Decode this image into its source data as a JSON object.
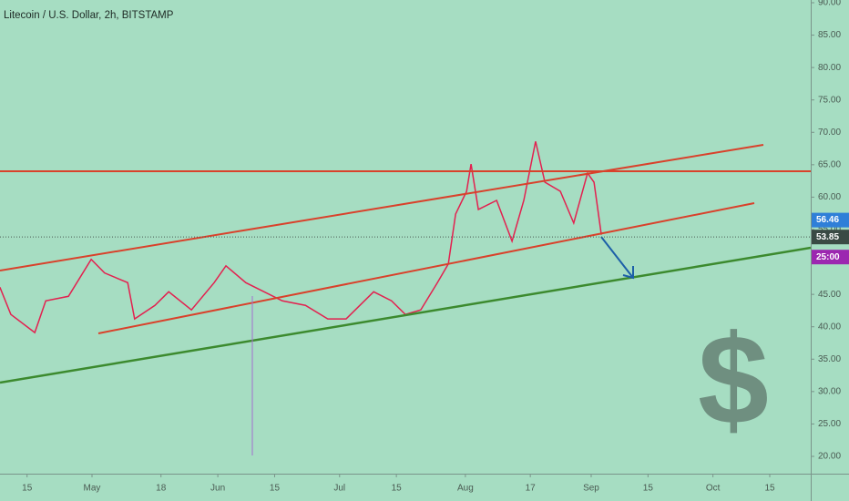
{
  "chart_data": {
    "type": "line",
    "title": "Litecoin / U.S. Dollar, 2h, BITSTAMP",
    "watermark": "$",
    "series": [
      {
        "name": "LTCUSD",
        "color": "#e3204f",
        "x": [
          99.3,
          102.0,
          107.9,
          110.6,
          116.2,
          121.8,
          125.1,
          130.8,
          132.5,
          137.5,
          140.9,
          146.5,
          152.1,
          155.0,
          159.9,
          164.4,
          168.9,
          174.6,
          180.1,
          184.6,
          191.4,
          195.8,
          199.2,
          203.0,
          207.1,
          209.8,
          211.6,
          214.3,
          215.4,
          217.2,
          221.7,
          225.5,
          228.4,
          231.3,
          233.6,
          237.4,
          240.7,
          244.1,
          245.7,
          247.5
        ],
        "values": [
          46.1,
          41.9,
          39.1,
          44.0,
          44.7,
          50.4,
          48.3,
          46.8,
          41.2,
          43.3,
          45.4,
          42.6,
          46.8,
          49.4,
          46.8,
          45.4,
          44.0,
          43.3,
          41.2,
          41.2,
          45.4,
          44.0,
          41.9,
          42.6,
          46.8,
          49.7,
          57.4,
          60.9,
          65.1,
          58.1,
          59.5,
          53.2,
          59.5,
          68.6,
          62.3,
          60.9,
          56.0,
          63.7,
          62.3,
          54.2
        ]
      }
    ],
    "xlim": [
      99.33,
      299.1
    ],
    "xticks": [
      {
        "value": 106,
        "label": "15"
      },
      {
        "value": 122,
        "label": "May"
      },
      {
        "value": 139,
        "label": "18"
      },
      {
        "value": 153,
        "label": "Jun"
      },
      {
        "value": 167,
        "label": "15"
      },
      {
        "value": 183,
        "label": "Jul"
      },
      {
        "value": 197,
        "label": "15"
      },
      {
        "value": 214,
        "label": "Aug"
      },
      {
        "value": 230,
        "label": "17"
      },
      {
        "value": 245,
        "label": "Sep"
      },
      {
        "value": 259,
        "label": "15"
      },
      {
        "value": 275,
        "label": "Oct"
      },
      {
        "value": 289,
        "label": "15"
      }
    ],
    "ylim": [
      17.33,
      90.42
    ],
    "yticks": [
      {
        "value": 20,
        "label": "20.00"
      },
      {
        "value": 25,
        "label": "25.00"
      },
      {
        "value": 30,
        "label": "30.00"
      },
      {
        "value": 35,
        "label": "35.00"
      },
      {
        "value": 40,
        "label": "40.00"
      },
      {
        "value": 45,
        "label": "45.00"
      },
      {
        "value": 50,
        "label": "50.00"
      },
      {
        "value": 55,
        "label": "55.00"
      },
      {
        "value": 60,
        "label": "60.00"
      },
      {
        "value": 65,
        "label": "65.00"
      },
      {
        "value": 70,
        "label": "70.00"
      },
      {
        "value": 75,
        "label": "75.00"
      },
      {
        "value": 80,
        "label": "80.00"
      },
      {
        "value": 85,
        "label": "85.00"
      },
      {
        "value": 90,
        "label": "90.00"
      }
    ],
    "price_labels": [
      {
        "value": 56.46,
        "color": "#2f7fd8"
      },
      {
        "value": 53.85,
        "color": "#3a4a44"
      }
    ],
    "countdown": "25:00",
    "countdown_color": "#9c27b0"
  }
}
